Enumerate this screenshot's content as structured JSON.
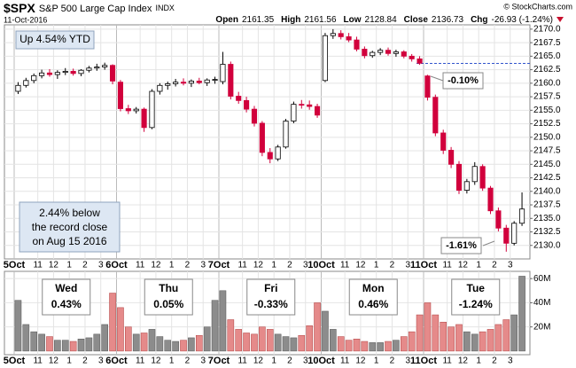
{
  "header": {
    "symbol": "$SPX",
    "name": "S&P 500 Large Cap Index",
    "exchange": "INDX",
    "date": "11-Oct-2016",
    "copyright": "© StockCharts.com",
    "stats": [
      {
        "label": "Open",
        "value": 2161.35
      },
      {
        "label": "High",
        "value": 2161.56
      },
      {
        "label": "Low",
        "value": 2128.84
      },
      {
        "label": "Close",
        "value": 2136.73
      },
      {
        "label": "Chg",
        "value": "-26.93 (-1.24%)"
      }
    ]
  },
  "chart_data": {
    "type": "candlestick",
    "days": [
      "5Oct",
      "6Oct",
      "7Oct",
      "10Oct",
      "11Oct"
    ],
    "hour_labels": [
      "11",
      "12",
      "1",
      "2",
      "3"
    ],
    "ohlc": [
      [
        2158.5,
        2160.2,
        2158.0,
        2159.6
      ],
      [
        2159.6,
        2161.0,
        2159.2,
        2160.5
      ],
      [
        2160.5,
        2161.8,
        2160.0,
        2161.4
      ],
      [
        2161.4,
        2162.5,
        2160.9,
        2161.9
      ],
      [
        2161.9,
        2162.6,
        2161.2,
        2161.6
      ],
      [
        2161.6,
        2162.4,
        2160.8,
        2162.0
      ],
      [
        2162.0,
        2162.8,
        2161.5,
        2162.2
      ],
      [
        2162.2,
        2162.7,
        2161.4,
        2161.8
      ],
      [
        2161.8,
        2162.6,
        2161.3,
        2162.4
      ],
      [
        2162.4,
        2163.2,
        2162.0,
        2162.8
      ],
      [
        2162.8,
        2163.6,
        2162.3,
        2163.0
      ],
      [
        2163.0,
        2163.8,
        2162.5,
        2163.3
      ],
      [
        2163.3,
        2163.5,
        2159.8,
        2160.4
      ],
      [
        2160.2,
        2160.6,
        2154.8,
        2155.3
      ],
      [
        2155.3,
        2156.0,
        2154.3,
        2154.9
      ],
      [
        2154.9,
        2155.6,
        2154.4,
        2155.2
      ],
      [
        2155.2,
        2155.5,
        2151.0,
        2151.8
      ],
      [
        2151.8,
        2158.9,
        2151.5,
        2158.5
      ],
      [
        2158.5,
        2160.0,
        2157.9,
        2159.6
      ],
      [
        2159.6,
        2160.3,
        2158.8,
        2159.9
      ],
      [
        2159.9,
        2160.8,
        2159.4,
        2160.2
      ],
      [
        2160.2,
        2160.9,
        2159.6,
        2160.0
      ],
      [
        2160.0,
        2160.7,
        2159.3,
        2160.4
      ],
      [
        2160.4,
        2161.0,
        2159.8,
        2160.1
      ],
      [
        2160.1,
        2160.9,
        2159.5,
        2160.6
      ],
      [
        2160.6,
        2161.2,
        2159.9,
        2160.7
      ],
      [
        2160.3,
        2165.8,
        2159.8,
        2163.5
      ],
      [
        2163.5,
        2164.0,
        2157.0,
        2157.6
      ],
      [
        2157.6,
        2158.4,
        2156.2,
        2156.8
      ],
      [
        2156.8,
        2157.5,
        2154.6,
        2155.2
      ],
      [
        2155.2,
        2155.8,
        2152.0,
        2152.6
      ],
      [
        2152.6,
        2153.0,
        2146.5,
        2147.2
      ],
      [
        2147.2,
        2148.0,
        2145.2,
        2146.0
      ],
      [
        2146.0,
        2148.6,
        2145.6,
        2148.2
      ],
      [
        2148.2,
        2153.4,
        2147.9,
        2153.0
      ],
      [
        2153.0,
        2156.6,
        2152.6,
        2156.1
      ],
      [
        2156.1,
        2156.9,
        2155.3,
        2156.0
      ],
      [
        2156.0,
        2156.8,
        2155.1,
        2155.7
      ],
      [
        2155.7,
        2156.2,
        2153.6,
        2154.1
      ],
      [
        2160.5,
        2169.3,
        2160.2,
        2168.8
      ],
      [
        2168.8,
        2170.0,
        2168.2,
        2169.2
      ],
      [
        2169.2,
        2169.8,
        2168.1,
        2168.6
      ],
      [
        2168.6,
        2169.3,
        2167.6,
        2168.0
      ],
      [
        2168.0,
        2168.6,
        2165.9,
        2166.3
      ],
      [
        2166.3,
        2166.8,
        2164.6,
        2165.1
      ],
      [
        2165.1,
        2166.0,
        2164.7,
        2165.7
      ],
      [
        2165.7,
        2166.5,
        2165.2,
        2166.1
      ],
      [
        2166.1,
        2166.6,
        2165.1,
        2165.5
      ],
      [
        2165.5,
        2166.2,
        2164.9,
        2165.8
      ],
      [
        2165.8,
        2166.1,
        2164.6,
        2165.0
      ],
      [
        2165.0,
        2165.4,
        2164.0,
        2164.5
      ],
      [
        2164.5,
        2165.0,
        2163.4,
        2163.7
      ],
      [
        2161.35,
        2161.56,
        2156.8,
        2157.4
      ],
      [
        2157.4,
        2157.9,
        2150.2,
        2150.8
      ],
      [
        2150.8,
        2151.4,
        2146.9,
        2147.6
      ],
      [
        2147.6,
        2148.2,
        2144.3,
        2145.0
      ],
      [
        2145.0,
        2145.6,
        2139.5,
        2140.2
      ],
      [
        2140.2,
        2142.3,
        2139.6,
        2141.8
      ],
      [
        2141.8,
        2145.4,
        2141.2,
        2144.6
      ],
      [
        2144.6,
        2145.0,
        2140.1,
        2140.6
      ],
      [
        2140.6,
        2141.0,
        2135.8,
        2136.4
      ],
      [
        2136.4,
        2137.0,
        2132.6,
        2133.2
      ],
      [
        2133.2,
        2133.8,
        2128.84,
        2130.4
      ],
      [
        2130.4,
        2134.5,
        2130.0,
        2134.1
      ],
      [
        2134.1,
        2139.8,
        2133.6,
        2136.73
      ]
    ],
    "ylim": [
      2127.5,
      2170.8
    ],
    "yticks": [
      {
        "value": 2130,
        "label": "2130.0"
      },
      {
        "value": 2132.5,
        "label": "2132.5"
      },
      {
        "value": 2135,
        "label": "2135.0"
      },
      {
        "value": 2137.5,
        "label": "2137.5"
      },
      {
        "value": 2140,
        "label": "2140.0"
      },
      {
        "value": 2142.5,
        "label": "2142.5"
      },
      {
        "value": 2145,
        "label": "2145.0"
      },
      {
        "value": 2147.5,
        "label": "2147.5"
      },
      {
        "value": 2150,
        "label": "2150.0"
      },
      {
        "value": 2152.5,
        "label": "2152.5"
      },
      {
        "value": 2155,
        "label": "2155.0"
      },
      {
        "value": 2157.5,
        "label": "2157.5"
      },
      {
        "value": 2160,
        "label": "2160.0"
      },
      {
        "value": 2162.5,
        "label": "2162.5"
      },
      {
        "value": 2165,
        "label": "2165.0"
      },
      {
        "value": 2167.5,
        "label": "2167.5"
      },
      {
        "value": 2170,
        "label": "2170.0"
      }
    ],
    "grid": true,
    "colors": {
      "up": "#000000",
      "down": "#d1003c"
    },
    "prev_close": 2163.66,
    "ytd_note": "Up 4.54% YTD",
    "record_note": [
      "2.44% below",
      "the record close",
      "on Aug 15 2016"
    ],
    "change_labels": [
      {
        "value": -0.1,
        "label": "-0.10%"
      },
      {
        "value": -1.61,
        "label": "-1.61%"
      }
    ],
    "day_changes": [
      {
        "day": "Wed",
        "value": 0.43,
        "label": "0.43%"
      },
      {
        "day": "Thu",
        "value": 0.05,
        "label": "0.05%"
      },
      {
        "day": "Fri",
        "value": -0.33,
        "label": "-0.33%"
      },
      {
        "day": "Mon",
        "value": 0.46,
        "label": "0.46%"
      },
      {
        "day": "Tue",
        "value": -1.24,
        "label": "-1.24%"
      }
    ],
    "volume": {
      "values": [
        42,
        22,
        16,
        14,
        12,
        9,
        9,
        8,
        10,
        11,
        14,
        22,
        48,
        36,
        20,
        14,
        15,
        18,
        12,
        9,
        8,
        9,
        11,
        13,
        20,
        42,
        50,
        26,
        18,
        15,
        14,
        20,
        18,
        14,
        12,
        11,
        13,
        21,
        40,
        33,
        18,
        12,
        9,
        10,
        8,
        7,
        7,
        8,
        9,
        12,
        16,
        30,
        40,
        30,
        24,
        20,
        22,
        16,
        14,
        16,
        18,
        22,
        26,
        30,
        62
      ],
      "ylim": [
        -3,
        66
      ],
      "yticks": [
        {
          "value": 20,
          "label": "20M"
        },
        {
          "value": 40,
          "label": "40M"
        },
        {
          "value": 60,
          "label": "60M"
        }
      ],
      "colors": {
        "up": "#8c8c8c",
        "down": "#e58a8a"
      }
    }
  }
}
